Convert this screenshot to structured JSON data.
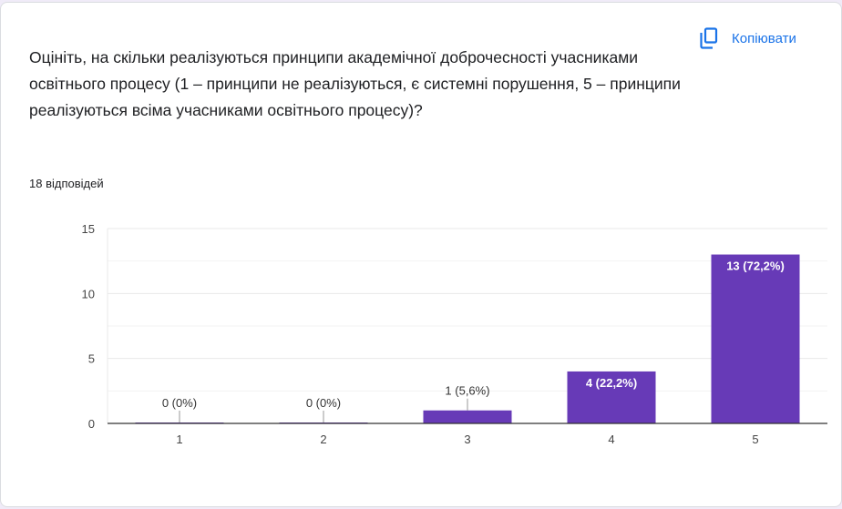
{
  "question": "Оцініть, на скільки реалізуються принципи академічної доброчесності учасниками освітнього процесу (1 – принципи не реалізуються, є системні порушення, 5 – принципи реалізуються всіма учасниками освітнього процесу)?",
  "response_count": "18 відповідей",
  "copy_button": {
    "label": "Копіювати",
    "icon": "copy-icon"
  },
  "colors": {
    "bar": "#673ab7",
    "accent": "#1a73e8"
  },
  "chart_data": {
    "type": "bar",
    "categories": [
      "1",
      "2",
      "3",
      "4",
      "5"
    ],
    "values": [
      0,
      0,
      1,
      4,
      13
    ],
    "data_labels": [
      "0 (0%)",
      "0 (0%)",
      "1 (5,6%)",
      "4 (22,2%)",
      "13 (72,2%)"
    ],
    "yticks": [
      0,
      5,
      10,
      15
    ],
    "ylim": [
      0,
      15
    ],
    "grid": true,
    "legend": "none"
  }
}
